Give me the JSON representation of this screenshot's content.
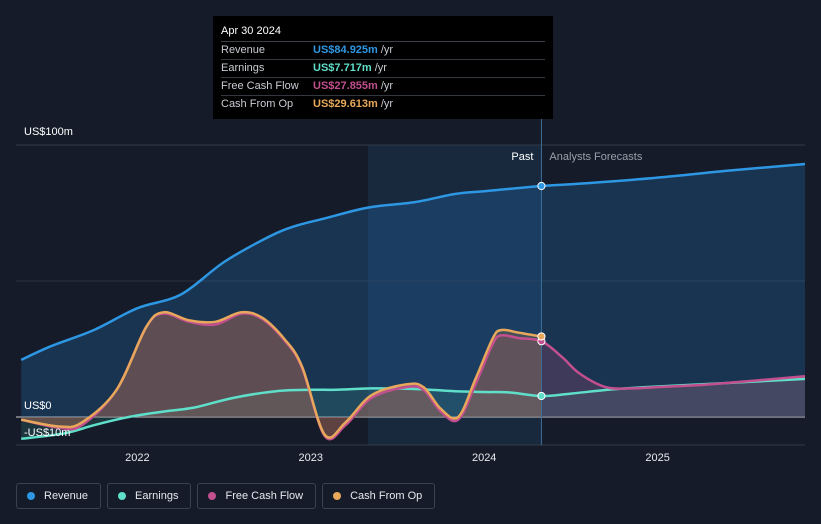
{
  "chart_data": {
    "type": "line",
    "y_unit_label": "US$100m",
    "zero_label": "US$0",
    "neg_label": "-US$10m",
    "ylim": [
      -10,
      100
    ],
    "x_ticks": [
      "2022",
      "2023",
      "2024",
      "2025"
    ],
    "x_tick_values": [
      2022.0,
      2023.0,
      2024.0,
      2025.0
    ],
    "xlim": [
      2021.3,
      2025.85
    ],
    "past_label": "Past",
    "forecast_label": "Analysts Forecasts",
    "highlight_start": 2023.33,
    "divider_x": 2024.33,
    "series": [
      {
        "name": "Revenue",
        "color": "#2e97e3",
        "fill": "rgba(36,120,190,0.28)",
        "x": [
          2021.33,
          2021.5,
          2021.75,
          2022.0,
          2022.25,
          2022.5,
          2022.75,
          2022.9,
          2023.08,
          2023.33,
          2023.6,
          2023.83,
          2024.0,
          2024.2,
          2024.33,
          2024.6,
          2025.0,
          2025.4,
          2025.85
        ],
        "values": [
          21,
          26,
          32,
          40,
          45,
          57,
          66,
          70,
          73,
          77,
          79,
          82,
          83,
          84.2,
          84.925,
          86,
          88,
          90.5,
          93
        ]
      },
      {
        "name": "Earnings",
        "color": "#5fdfc9",
        "fill": "rgba(60,150,140,0.22)",
        "x": [
          2021.33,
          2021.58,
          2021.75,
          2021.95,
          2022.15,
          2022.33,
          2022.55,
          2022.8,
          2023.0,
          2023.15,
          2023.35,
          2023.6,
          2023.83,
          2024.0,
          2024.15,
          2024.33,
          2024.5,
          2024.75,
          2025.0,
          2025.4,
          2025.85
        ],
        "values": [
          -8,
          -6,
          -3,
          0,
          2,
          3.5,
          7,
          9.5,
          10,
          10,
          10.5,
          10.3,
          9.5,
          9.2,
          9,
          7.717,
          8.6,
          10.2,
          11.2,
          12.5,
          14
        ]
      },
      {
        "name": "Free Cash Flow",
        "color": "#c24f8e",
        "fill": "rgba(150,70,110,0.32)",
        "x": [
          2021.33,
          2021.55,
          2021.68,
          2021.88,
          2022.05,
          2022.15,
          2022.3,
          2022.45,
          2022.6,
          2022.72,
          2022.85,
          2022.95,
          2023.08,
          2023.2,
          2023.35,
          2023.55,
          2023.65,
          2023.75,
          2023.85,
          2023.95,
          2024.05,
          2024.1,
          2024.2,
          2024.33,
          2024.45,
          2024.55,
          2024.7,
          2024.85,
          2025.0,
          2025.3,
          2025.85
        ],
        "values": [
          -1,
          -4,
          -3,
          10,
          33,
          38,
          35,
          34,
          38,
          36,
          28,
          18,
          -7,
          -3,
          7,
          11,
          10,
          2,
          -1,
          12,
          27,
          30,
          29,
          27.855,
          22,
          16,
          11,
          10.5,
          11,
          12,
          15
        ]
      },
      {
        "name": "Cash From Op",
        "color": "#e8a85b",
        "fill": "rgba(160,120,70,0.32)",
        "x": [
          2021.33,
          2021.55,
          2021.68,
          2021.88,
          2022.05,
          2022.15,
          2022.3,
          2022.45,
          2022.6,
          2022.72,
          2022.85,
          2022.95,
          2023.08,
          2023.2,
          2023.35,
          2023.55,
          2023.65,
          2023.75,
          2023.85,
          2023.95,
          2024.05,
          2024.1,
          2024.2,
          2024.33
        ],
        "values": [
          -1,
          -3.5,
          -2,
          10,
          33,
          38.5,
          35.5,
          35,
          38.5,
          36.5,
          28.5,
          18.5,
          -6.5,
          -2,
          8,
          12,
          11,
          3,
          0,
          14,
          29,
          32,
          31,
          29.613
        ]
      }
    ]
  },
  "tooltip": {
    "date": "Apr 30 2024",
    "rows": [
      {
        "name": "Revenue",
        "value": "US$84.925m",
        "unit": "/yr",
        "color": "#2e97e3"
      },
      {
        "name": "Earnings",
        "value": "US$7.717m",
        "unit": "/yr",
        "color": "#5fdfc9"
      },
      {
        "name": "Free Cash Flow",
        "value": "US$27.855m",
        "unit": "/yr",
        "color": "#c24f8e"
      },
      {
        "name": "Cash From Op",
        "value": "US$29.613m",
        "unit": "/yr",
        "color": "#e8a85b"
      }
    ]
  },
  "legend": [
    {
      "label": "Revenue",
      "color": "#2e97e3"
    },
    {
      "label": "Earnings",
      "color": "#5fdfc9"
    },
    {
      "label": "Free Cash Flow",
      "color": "#c24f8e"
    },
    {
      "label": "Cash From Op",
      "color": "#e8a85b"
    }
  ]
}
